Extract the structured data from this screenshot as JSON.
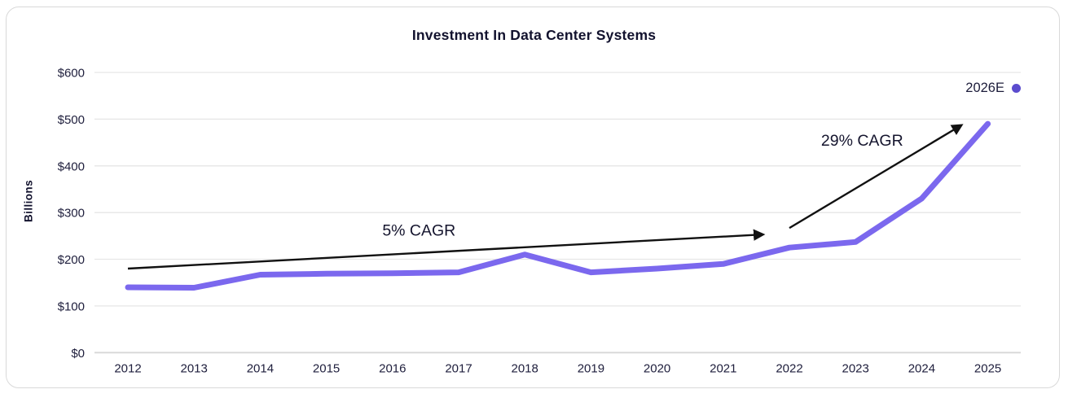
{
  "chart_data": {
    "type": "line",
    "title": "Investment In Data Center Systems",
    "ylabel": "Billions",
    "categories": [
      "2012",
      "2013",
      "2014",
      "2015",
      "2016",
      "2017",
      "2018",
      "2019",
      "2020",
      "2021",
      "2022",
      "2023",
      "2024",
      "2025"
    ],
    "values": [
      140,
      139,
      167,
      169,
      170,
      172,
      210,
      172,
      180,
      190,
      225,
      237,
      330,
      490
    ],
    "ylim": [
      0,
      600
    ],
    "yticks": [
      0,
      100,
      200,
      300,
      400,
      500,
      600
    ],
    "ytick_labels": [
      "$0",
      "$100",
      "$200",
      "$300",
      "$400",
      "$500",
      "$600"
    ],
    "grid": "horizontal",
    "legend": {
      "label": "2026E",
      "marker": "dot",
      "position": "top-right"
    },
    "annotations": [
      {
        "label": "5% CAGR",
        "label_at": {
          "year": 2016.4,
          "value": 261
        },
        "arrow": {
          "from": {
            "year": 2012.0,
            "value": 180
          },
          "to": {
            "year": 2021.6,
            "value": 253
          }
        }
      },
      {
        "label": "29% CAGR",
        "label_at": {
          "year": 2023.1,
          "value": 454
        },
        "arrow": {
          "from": {
            "year": 2022.0,
            "value": 267
          },
          "to": {
            "year": 2024.6,
            "value": 487
          }
        }
      }
    ]
  },
  "colors": {
    "line": "#7b68ee",
    "legend_dot": "#5b4cce",
    "arrow": "#111111",
    "grid": "#e6e6e6",
    "axis": "#d9d9d9",
    "text": "#15152e",
    "card_border": "#d9d9d9",
    "background": "#ffffff"
  }
}
